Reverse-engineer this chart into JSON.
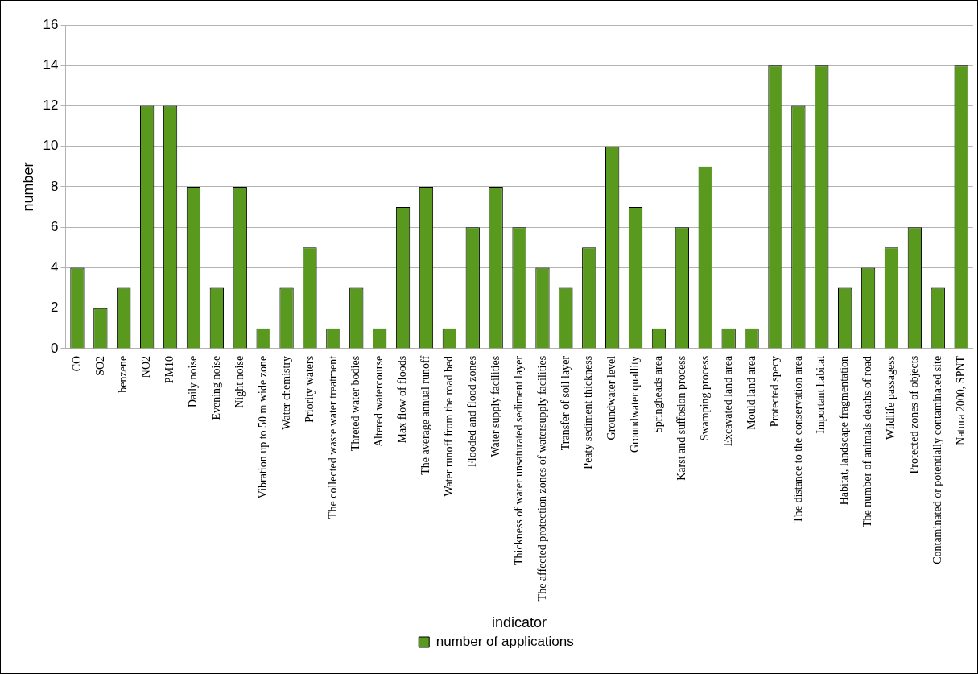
{
  "chart_data": {
    "type": "bar",
    "xlabel": "indicator",
    "ylabel": "number",
    "categories": [
      "CO",
      "SO2",
      "benzene",
      "NO2",
      "PM10",
      "Daily noise",
      "Evening noise",
      "Night noise",
      "Vibration up to 50 m wide zone",
      "Water chemistry",
      "Priority waters",
      "The collected waste water treatment",
      "Threted water bodies",
      "Altered watercourse",
      "Max flow of floods",
      "The average annual runoff",
      "Water runoff from the road bed",
      "Flooded and flood zones",
      "Water supply facilities",
      "Thickness of water unsaturated sediment layer",
      "The affected protection zones of watersupply facilities",
      "Transfer of soil layer",
      "Peaty sediment thickness",
      "Groundwater level",
      "Groundwater quallity",
      "Springheads area",
      "Karst and suffosion process",
      "Swamping process",
      "Excavated land area",
      "Mould land area",
      "Protected specy",
      "The distance to the conservation area",
      "Important habitat",
      "Habitat, landscape fragmentation",
      "The number of animals deaths of road",
      "Wildlife passagess",
      "Protected zones of objects",
      "Contaminated or potentially contaminated site",
      "Natura 2000, SPNT"
    ],
    "series": [
      {
        "name": "number of applications",
        "color": "#59991e",
        "values": [
          4,
          2,
          3,
          12,
          12,
          8,
          3,
          8,
          1,
          3,
          5,
          1,
          3,
          1,
          7,
          8,
          1,
          6,
          8,
          6,
          4,
          3,
          5,
          10,
          7,
          1,
          6,
          9,
          1,
          1,
          14,
          12,
          14,
          3,
          4,
          5,
          6,
          3,
          14
        ]
      }
    ],
    "ylim": [
      0,
      16
    ],
    "yticks": [
      0,
      2,
      4,
      6,
      8,
      10,
      12,
      14,
      16
    ],
    "grid": "y",
    "legend": "bottom right"
  }
}
